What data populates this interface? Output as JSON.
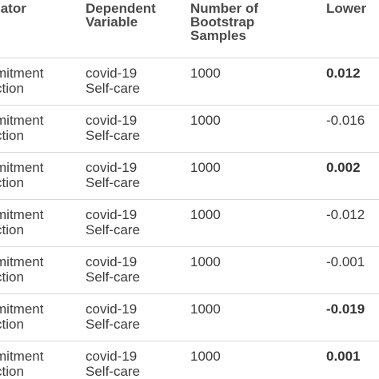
{
  "table": {
    "headers": {
      "mediator": "iator",
      "dependent": "Dependent\nVariable",
      "bootstrap": "Number of\nBootstrap\nSamples",
      "lower": "Lower"
    },
    "rows": [
      {
        "mediator": "mitment\nction",
        "dependent": "covid-19\nSelf-care",
        "bootstrap": "1000",
        "lower": "0.012",
        "lower_bold": true
      },
      {
        "mediator": "mitment\nction",
        "dependent": "covid-19\nSelf-care",
        "bootstrap": "1000",
        "lower": "-0.016",
        "lower_bold": false
      },
      {
        "mediator": "mitment\nction",
        "dependent": "covid-19\nSelf-care",
        "bootstrap": "1000",
        "lower": "0.002",
        "lower_bold": true
      },
      {
        "mediator": "mitment\nction",
        "dependent": "covid-19\nSelf-care",
        "bootstrap": "1000",
        "lower": "-0.012",
        "lower_bold": false
      },
      {
        "mediator": "mitment\nction",
        "dependent": "covid-19\nSelf-care",
        "bootstrap": "1000",
        "lower": "-0.001",
        "lower_bold": false
      },
      {
        "mediator": "mitment\nction",
        "dependent": "covid-19\nSelf-care",
        "bootstrap": "1000",
        "lower": "-0.019",
        "lower_bold": true
      },
      {
        "mediator": "mitment\nction",
        "dependent": "covid-19\nSelf-care",
        "bootstrap": "1000",
        "lower": "0.001",
        "lower_bold": true
      }
    ]
  }
}
